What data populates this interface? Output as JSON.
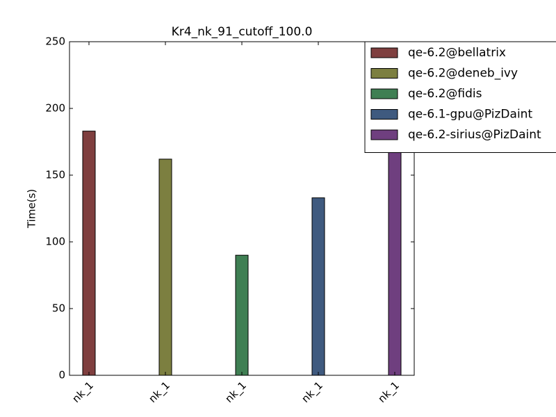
{
  "chart_data": {
    "type": "bar",
    "title": "Kr4_nk_91_cutoff_100.0",
    "ylabel": "Time(s)",
    "categories": [
      "nk_1",
      "nk_1",
      "nk_1",
      "nk_1",
      "nk_1"
    ],
    "series": [
      {
        "name": "qe-6.2@bellatrix",
        "color": "#7f3f3f",
        "values": [
          183,
          null,
          null,
          null,
          null
        ]
      },
      {
        "name": "qe-6.2@deneb_ivy",
        "color": "#7c7f40",
        "values": [
          null,
          162,
          null,
          null,
          null
        ]
      },
      {
        "name": "qe-6.2@fidis",
        "color": "#3f7f53",
        "values": [
          null,
          null,
          90,
          null,
          null
        ]
      },
      {
        "name": "qe-6.1-gpu@PizDaint",
        "color": "#3f5a7f",
        "values": [
          null,
          null,
          null,
          133,
          null
        ]
      },
      {
        "name": "qe-6.2-sirius@PizDaint",
        "color": "#6f3f7f",
        "values": [
          null,
          null,
          null,
          null,
          178
        ]
      }
    ],
    "ylim": [
      0,
      250
    ],
    "yticks": [
      0,
      50,
      100,
      150,
      200,
      250
    ],
    "legend": "upper right"
  }
}
